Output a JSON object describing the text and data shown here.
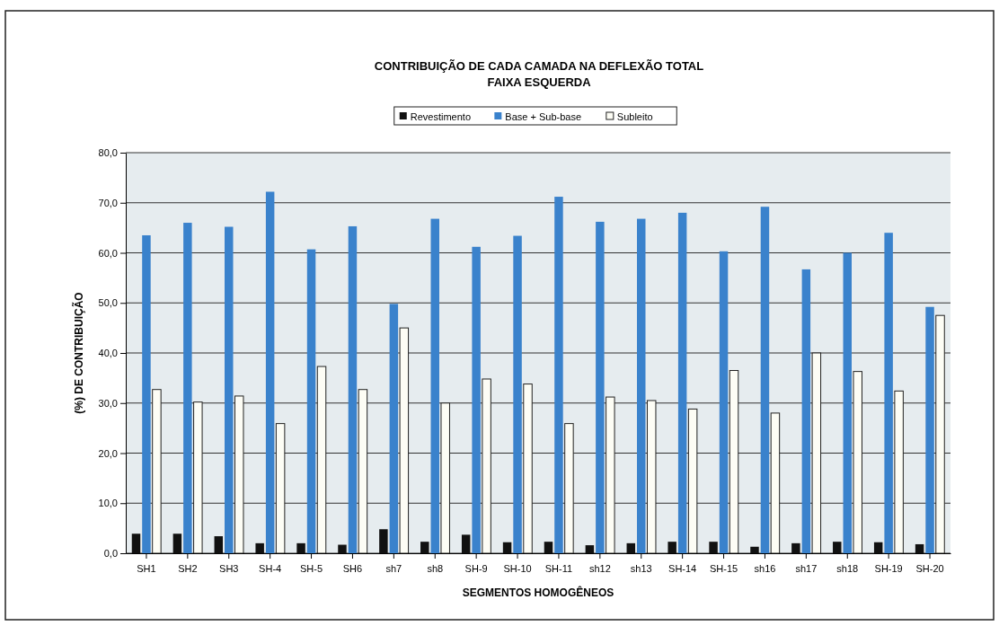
{
  "chart_data": {
    "type": "bar",
    "title": "CONTRIBUIÇÃO DE CADA CAMADA NA DEFLEXÃO TOTAL",
    "subtitle": "FAIXA ESQUERDA",
    "xlabel": "SEGMENTOS HOMOGÊNEOS",
    "ylabel": "(%) DE CONTRIBUIÇÃO",
    "categories": [
      "SH1",
      "SH2",
      "SH3",
      "SH-4",
      "SH-5",
      "SH6",
      "sh7",
      "sh8",
      "SH-9",
      "SH-10",
      "SH-11",
      "sh12",
      "sh13",
      "SH-14",
      "SH-15",
      "sh16",
      "sh17",
      "sh18",
      "SH-19",
      "SH-20"
    ],
    "series": [
      {
        "name": "Revestimento",
        "color": "#111111",
        "values": [
          3.9,
          3.9,
          3.4,
          2.0,
          2.0,
          1.7,
          4.8,
          2.3,
          3.7,
          2.2,
          2.3,
          1.6,
          2.0,
          2.3,
          2.3,
          1.3,
          2.0,
          2.3,
          2.2,
          1.8
        ]
      },
      {
        "name": "Base + Sub-base",
        "color": "#3a82cc",
        "values": [
          63.5,
          66.0,
          65.2,
          72.2,
          60.7,
          65.3,
          49.8,
          66.8,
          61.2,
          63.4,
          71.2,
          66.2,
          66.8,
          68.0,
          60.3,
          69.2,
          56.7,
          60.0,
          64.0,
          49.2
        ]
      },
      {
        "name": "Subleito",
        "color": "#fdfdf5",
        "values": [
          32.7,
          30.2,
          31.4,
          25.9,
          37.3,
          32.7,
          45.0,
          30.0,
          34.8,
          33.8,
          25.9,
          31.2,
          30.5,
          28.8,
          36.5,
          28.0,
          40.0,
          36.3,
          32.4,
          47.5
        ]
      }
    ],
    "ylim": [
      0,
      80
    ],
    "yticks": [
      {
        "value": 0,
        "label": "0,0"
      },
      {
        "value": 10,
        "label": "10,0"
      },
      {
        "value": 20,
        "label": "20,0"
      },
      {
        "value": 30,
        "label": "30,0"
      },
      {
        "value": 40,
        "label": "40,0"
      },
      {
        "value": 50,
        "label": "50,0"
      },
      {
        "value": 60,
        "label": "60,0"
      },
      {
        "value": 70,
        "label": "70,0"
      },
      {
        "value": 80,
        "label": "80,0"
      }
    ],
    "grid": "y",
    "legend": "top"
  }
}
